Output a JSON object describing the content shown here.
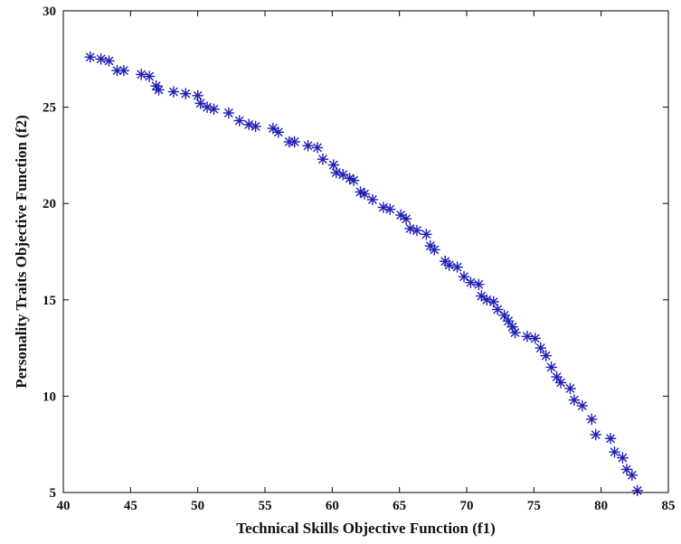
{
  "chart_data": {
    "type": "scatter",
    "xlabel": "Technical Skills Objective Function (f1)",
    "ylabel": "Personality Traits Objective Function (f2)",
    "xlim": [
      40,
      85
    ],
    "ylim": [
      5,
      30
    ],
    "xticks": [
      "40",
      "45",
      "50",
      "55",
      "60",
      "65",
      "70",
      "75",
      "80",
      "85"
    ],
    "yticks": [
      "5",
      "10",
      "15",
      "20",
      "25",
      "30"
    ],
    "marker": "asterisk",
    "marker_color": "#1f1fb4",
    "grid": false,
    "series": [
      {
        "x": [
          42.0,
          42.8,
          43.4,
          44.0,
          44.5,
          45.8,
          46.4,
          46.9,
          47.1,
          48.2,
          49.1,
          50.0,
          50.2,
          50.7,
          51.2,
          52.3,
          53.1,
          53.8,
          54.3,
          55.6,
          56.0,
          56.8,
          57.2,
          58.2,
          58.9,
          59.3,
          60.1,
          60.3,
          60.8,
          61.3,
          61.6,
          62.1,
          62.4,
          63.0,
          63.8,
          64.3,
          65.1,
          65.5,
          65.8,
          66.3,
          67.0,
          67.3,
          67.6,
          68.4,
          68.7,
          69.3,
          69.8,
          70.3,
          70.9,
          71.1,
          71.5,
          72.0,
          72.3,
          72.8,
          73.1,
          73.4,
          73.6,
          74.5,
          75.1,
          75.5,
          75.9,
          76.3,
          76.7,
          77.0,
          77.7,
          78.0,
          78.6,
          79.3,
          79.6,
          80.7,
          81.0,
          81.6,
          81.9,
          82.3,
          82.7
        ],
        "y": [
          27.6,
          27.5,
          27.4,
          26.9,
          26.9,
          26.7,
          26.6,
          26.1,
          25.9,
          25.8,
          25.7,
          25.6,
          25.2,
          25.0,
          24.9,
          24.7,
          24.3,
          24.1,
          24.0,
          23.9,
          23.7,
          23.2,
          23.2,
          23.0,
          22.9,
          22.3,
          22.0,
          21.6,
          21.5,
          21.3,
          21.2,
          20.6,
          20.5,
          20.2,
          19.8,
          19.7,
          19.4,
          19.2,
          18.7,
          18.6,
          18.4,
          17.8,
          17.6,
          17.0,
          16.8,
          16.7,
          16.2,
          15.9,
          15.8,
          15.2,
          15.0,
          14.9,
          14.5,
          14.2,
          13.9,
          13.6,
          13.3,
          13.1,
          13.0,
          12.5,
          12.1,
          11.5,
          11.0,
          10.7,
          10.4,
          9.8,
          9.5,
          8.8,
          8.0,
          7.8,
          7.1,
          6.8,
          6.2,
          5.9,
          5.1
        ]
      }
    ]
  }
}
